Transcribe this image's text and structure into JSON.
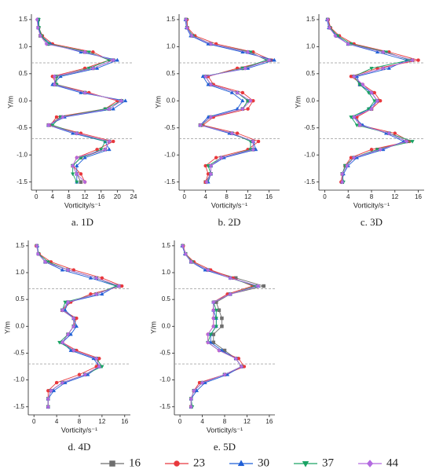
{
  "chart_data": [
    {
      "type": "line",
      "caption": "a. 1D",
      "xlabel": "Vorticity/s⁻¹",
      "ylabel": "Y/m",
      "y": [
        1.5,
        1.35,
        1.2,
        1.05,
        0.9,
        0.75,
        0.6,
        0.45,
        0.3,
        0.15,
        0,
        -0.15,
        -0.3,
        -0.45,
        -0.6,
        -0.75,
        -0.9,
        -1.05,
        -1.2,
        -1.35,
        -1.5
      ],
      "series": [
        {
          "name": "16",
          "color": "#6e6e6e",
          "marker": "square",
          "x": [
            0.5,
            0.5,
            1,
            3,
            12,
            19,
            14,
            5,
            4.5,
            12,
            21,
            18,
            6,
            3,
            10,
            18,
            17,
            11,
            9,
            10,
            11
          ]
        },
        {
          "name": "23",
          "color": "#e8383d",
          "marker": "circle",
          "x": [
            0.3,
            0.6,
            1.5,
            4,
            14,
            18,
            12,
            4,
            5,
            13,
            20,
            17,
            5,
            3.5,
            11,
            19,
            15,
            10,
            9,
            11,
            12
          ]
        },
        {
          "name": "30",
          "color": "#1f5fd6",
          "marker": "triangle-up",
          "x": [
            0.4,
            0.5,
            1.2,
            3.5,
            11,
            20,
            15,
            6,
            4,
            11,
            22,
            19,
            7,
            3,
            9,
            17,
            18,
            12,
            10,
            10,
            10
          ]
        },
        {
          "name": "37",
          "color": "#1aa364",
          "marker": "triangle-down",
          "x": [
            0.6,
            0.7,
            1.3,
            3,
            13,
            18,
            13,
            5,
            5,
            12,
            21,
            17,
            6,
            4,
            10,
            17,
            16,
            11,
            9,
            9,
            10
          ]
        },
        {
          "name": "44",
          "color": "#b36ae0",
          "marker": "diamond",
          "x": [
            0.2,
            0.4,
            1,
            2.5,
            12,
            19,
            14,
            4.5,
            4.5,
            12,
            21,
            18,
            6.5,
            3,
            10,
            18,
            17,
            10,
            9,
            10,
            12
          ]
        }
      ],
      "xlim": [
        -1.2,
        24
      ],
      "xticks": [
        0,
        4,
        8,
        12,
        16,
        20,
        24
      ],
      "ylim": [
        -1.65,
        1.6
      ],
      "yticks": [
        -1.5,
        {
          "value": -1,
          "label": "-1.0"
        },
        -0.5,
        {
          "value": 0,
          "label": "0.0"
        },
        0.5,
        {
          "value": 1,
          "label": "1.0"
        },
        1.5
      ],
      "hlines": [
        0.7,
        -0.7
      ]
    },
    {
      "type": "line",
      "caption": "b. 2D",
      "xlabel": "Vorticity/s⁻¹",
      "ylabel": "Y/m",
      "y": [
        1.5,
        1.35,
        1.2,
        1.05,
        0.9,
        0.75,
        0.6,
        0.45,
        0.3,
        0.15,
        0,
        -0.15,
        -0.3,
        -0.45,
        -0.6,
        -0.75,
        -0.9,
        -1.05,
        -1.2,
        -1.35,
        -1.5
      ],
      "series": [
        {
          "name": "16",
          "color": "#6e6e6e",
          "marker": "square",
          "x": [
            0.3,
            0.5,
            1.5,
            5,
            12,
            16,
            11,
            4,
            5,
            10,
            12,
            11,
            5,
            3,
            9,
            13,
            13,
            7,
            5,
            5,
            4
          ]
        },
        {
          "name": "23",
          "color": "#e8383d",
          "marker": "circle",
          "x": [
            0.5,
            0.6,
            2,
            6,
            13,
            16.5,
            10,
            4.5,
            5.5,
            11,
            13,
            12,
            5.5,
            3.5,
            10,
            14,
            12,
            6,
            4,
            4.5,
            4
          ]
        },
        {
          "name": "30",
          "color": "#1f5fd6",
          "marker": "triangle-up",
          "x": [
            0.2,
            0.4,
            1.2,
            4.5,
            11,
            17,
            12,
            3.5,
            4.5,
            9,
            11,
            10,
            4.5,
            3,
            8.5,
            13,
            13.5,
            7.5,
            5,
            5,
            4.5
          ]
        },
        {
          "name": "37",
          "color": "#1aa364",
          "marker": "triangle-down",
          "x": [
            0.4,
            0.5,
            1.6,
            5,
            12.5,
            15.5,
            11,
            4,
            5,
            10,
            12,
            11,
            5,
            3.2,
            9,
            12.5,
            12.5,
            7,
            4.5,
            5,
            4.3
          ]
        },
        {
          "name": "44",
          "color": "#b36ae0",
          "marker": "diamond",
          "x": [
            0.3,
            0.5,
            1.4,
            5,
            12,
            16,
            11.5,
            4,
            5,
            10,
            12.5,
            11,
            5,
            3,
            9,
            13,
            13,
            7,
            5,
            5,
            4.2
          ]
        }
      ],
      "xlim": [
        -1,
        18
      ],
      "xticks": [
        0,
        4,
        8,
        12,
        16
      ],
      "ylim": [
        -1.65,
        1.6
      ],
      "yticks": [
        -1.5,
        {
          "value": -1,
          "label": "-1.0"
        },
        -0.5,
        {
          "value": 0,
          "label": "0.0"
        },
        0.5,
        {
          "value": 1,
          "label": "1.0"
        },
        1.5
      ],
      "hlines": [
        0.7,
        -0.7
      ]
    },
    {
      "type": "line",
      "caption": "c. 3D",
      "xlabel": "Vorticity/s⁻¹",
      "ylabel": "Y/m",
      "y": [
        1.5,
        1.35,
        1.2,
        1.05,
        0.9,
        0.75,
        0.6,
        0.45,
        0.3,
        0.15,
        0,
        -0.15,
        -0.3,
        -0.45,
        -0.6,
        -0.75,
        -0.9,
        -1.05,
        -1.2,
        -1.35,
        -1.5
      ],
      "series": [
        {
          "name": "16",
          "color": "#6e6e6e",
          "marker": "square",
          "x": [
            0.5,
            0.8,
            2,
            4,
            10,
            15,
            10,
            5,
            6,
            8,
            9,
            8,
            5,
            6,
            11,
            14,
            9,
            5,
            3.5,
            3,
            3
          ]
        },
        {
          "name": "23",
          "color": "#e8383d",
          "marker": "circle",
          "x": [
            0.6,
            1,
            2.5,
            5,
            11,
            16,
            9,
            4.5,
            6.5,
            8.5,
            9.5,
            8,
            5.5,
            6,
            12,
            14.5,
            8,
            4.5,
            3.5,
            3,
            2.8
          ]
        },
        {
          "name": "30",
          "color": "#1f5fd6",
          "marker": "triangle-up",
          "x": [
            0.4,
            0.7,
            2,
            4,
            9,
            14,
            11,
            5.5,
            6,
            8,
            9,
            7.5,
            5,
            6.5,
            10.5,
            13.5,
            10,
            5.5,
            4,
            3.2,
            3
          ]
        },
        {
          "name": "37",
          "color": "#1aa364",
          "marker": "triangle-down",
          "x": [
            0.5,
            0.9,
            2.2,
            4.5,
            10.5,
            14.5,
            8,
            5,
            6,
            7.5,
            8.5,
            7.5,
            4.5,
            5.5,
            11,
            15,
            9,
            5,
            3.5,
            3,
            3.2
          ]
        },
        {
          "name": "44",
          "color": "#b36ae0",
          "marker": "diamond",
          "x": [
            0.5,
            0.8,
            1.8,
            4,
            10,
            15,
            10,
            5,
            6.5,
            8,
            9,
            8,
            5,
            6,
            11,
            14,
            9.5,
            5,
            3.8,
            3,
            3
          ]
        }
      ],
      "xlim": [
        -1,
        17
      ],
      "xticks": [
        0,
        4,
        8,
        12,
        16
      ],
      "ylim": [
        -1.65,
        1.6
      ],
      "yticks": [
        -1.5,
        {
          "value": -1,
          "label": "-1.0"
        },
        -0.5,
        {
          "value": 0,
          "label": "0.0"
        },
        0.5,
        {
          "value": 1,
          "label": "1.0"
        },
        1.5
      ],
      "hlines": [
        0.7,
        -0.7
      ]
    },
    {
      "type": "line",
      "caption": "d. 4D",
      "xlabel": "Vorticity/s⁻¹",
      "ylabel": "Y/m",
      "y": [
        1.5,
        1.35,
        1.2,
        1.05,
        0.9,
        0.75,
        0.6,
        0.45,
        0.3,
        0.15,
        0,
        -0.15,
        -0.3,
        -0.45,
        -0.6,
        -0.75,
        -0.9,
        -1.05,
        -1.2,
        -1.35,
        -1.5
      ],
      "series": [
        {
          "name": "16",
          "color": "#6e6e6e",
          "marker": "square",
          "x": [
            0.5,
            0.8,
            2,
            6,
            11,
            15,
            11,
            6,
            5,
            7,
            7,
            6,
            5,
            7,
            11,
            11.5,
            9,
            5,
            3,
            2.5,
            2.5
          ]
        },
        {
          "name": "23",
          "color": "#e8383d",
          "marker": "circle",
          "x": [
            0.4,
            0.9,
            3,
            7,
            12,
            15.5,
            10,
            6.5,
            5,
            7.5,
            7,
            6,
            5,
            7.5,
            11.5,
            11,
            8,
            4,
            2.5,
            2.5,
            2.5
          ]
        },
        {
          "name": "30",
          "color": "#1f5fd6",
          "marker": "triangle-up",
          "x": [
            0.6,
            0.8,
            2,
            5,
            10,
            14.5,
            12,
            6,
            5.5,
            7,
            7.5,
            6.5,
            5,
            6.5,
            10.5,
            11.5,
            9.5,
            5.5,
            3.5,
            2.5,
            2.5
          ]
        },
        {
          "name": "37",
          "color": "#1aa364",
          "marker": "triangle-down",
          "x": [
            0.5,
            0.8,
            2.5,
            6,
            11,
            14.5,
            11,
            5.5,
            5,
            7,
            7,
            6,
            4.5,
            7,
            11,
            12,
            9,
            5,
            3,
            2.5,
            2.5
          ]
        },
        {
          "name": "44",
          "color": "#b36ae0",
          "marker": "diamond",
          "x": [
            0.5,
            0.7,
            2,
            6,
            11,
            15,
            11,
            6,
            5,
            7,
            7,
            6,
            5,
            7,
            11,
            11.5,
            9,
            5,
            3,
            2.5,
            2.5
          ]
        }
      ],
      "xlim": [
        -1,
        17
      ],
      "xticks": [
        0,
        4,
        8,
        12,
        16
      ],
      "ylim": [
        -1.65,
        1.6
      ],
      "yticks": [
        -1.5,
        {
          "value": -1,
          "label": "-1.0"
        },
        -0.5,
        {
          "value": 0,
          "label": "0.0"
        },
        0.5,
        {
          "value": 1,
          "label": "1.0"
        },
        1.5
      ],
      "hlines": [
        0.7,
        -0.7
      ]
    },
    {
      "type": "line",
      "caption": "e. 5D",
      "xlabel": "Vorticity/s⁻¹",
      "ylabel": "Y/m",
      "y": [
        1.5,
        1.35,
        1.2,
        1.05,
        0.9,
        0.75,
        0.6,
        0.45,
        0.3,
        0.15,
        0,
        -0.15,
        -0.3,
        -0.45,
        -0.6,
        -0.75,
        -0.9,
        -1.05,
        -1.2,
        -1.35,
        -1.5
      ],
      "series": [
        {
          "name": "16",
          "color": "#6e6e6e",
          "marker": "square",
          "x": [
            0.5,
            1,
            2,
            5,
            10,
            15,
            9,
            6.5,
            7,
            7.5,
            7.5,
            6,
            6,
            8,
            10,
            11,
            8,
            4,
            2.5,
            2,
            2
          ]
        },
        {
          "name": "23",
          "color": "#e8383d",
          "marker": "circle",
          "x": [
            0.6,
            1,
            2.5,
            5.5,
            9.5,
            13,
            8.5,
            6,
            6,
            6,
            6,
            5,
            5,
            7,
            10.5,
            11.5,
            8,
            3.5,
            2.5,
            2,
            2
          ]
        },
        {
          "name": "30",
          "color": "#1f5fd6",
          "marker": "triangle-up",
          "x": [
            0.4,
            0.9,
            2,
            4.5,
            9,
            14,
            9,
            6,
            6,
            6.5,
            6.5,
            5.5,
            5.5,
            7.5,
            10,
            11,
            8.5,
            4.5,
            3,
            2,
            2
          ]
        },
        {
          "name": "37",
          "color": "#1aa364",
          "marker": "triangle-down",
          "x": [
            0.5,
            1,
            2.2,
            5,
            9,
            13.5,
            9,
            6,
            6.5,
            6.5,
            6.5,
            5.5,
            5,
            7,
            10,
            11,
            8,
            4,
            2.5,
            2,
            2.2
          ]
        },
        {
          "name": "44",
          "color": "#b36ae0",
          "marker": "diamond",
          "x": [
            0.5,
            1,
            2,
            5,
            9,
            14,
            9,
            6,
            6,
            6,
            6,
            5,
            5,
            7,
            10,
            11,
            8,
            4,
            2.5,
            2,
            2
          ]
        }
      ],
      "xlim": [
        -1,
        17
      ],
      "xticks": [
        0,
        4,
        8,
        12,
        16
      ],
      "ylim": [
        -1.65,
        1.6
      ],
      "yticks": [
        -1.5,
        {
          "value": -1,
          "label": "-1.0"
        },
        -0.5,
        {
          "value": 0,
          "label": "0.0"
        },
        0.5,
        {
          "value": 1,
          "label": "1.0"
        },
        1.5
      ],
      "hlines": [
        0.7,
        -0.7
      ]
    }
  ]
}
